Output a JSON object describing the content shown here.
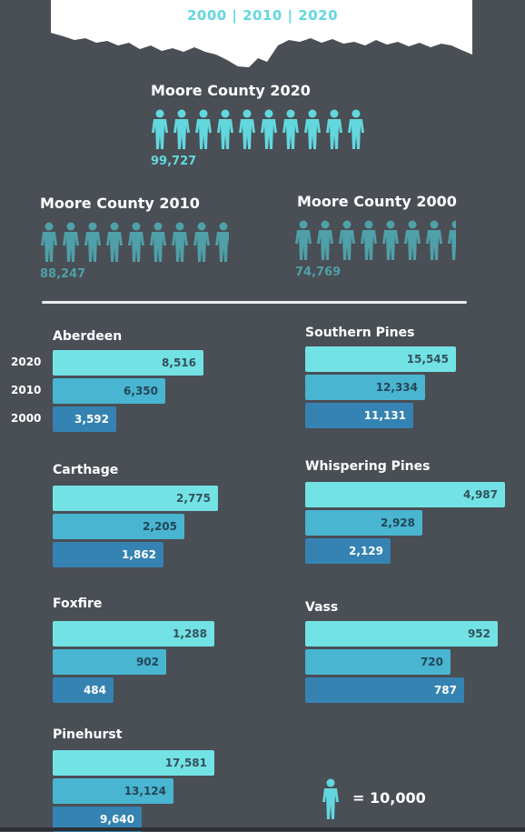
{
  "header": {
    "years": "2000 | 2010 | 2020"
  },
  "county": [
    {
      "title": "Moore County 2020",
      "value": "99,727",
      "figures": 10
    },
    {
      "title": "Moore County 2010",
      "value": "88,247",
      "figures": 8.8
    },
    {
      "title": "Moore County 2000",
      "value": "74,769",
      "figures": 7.5
    }
  ],
  "year_labels": [
    "2020",
    "2010",
    "2000"
  ],
  "legend": {
    "text": "= 10,000",
    "icon": "person-icon"
  },
  "colors": {
    "background": "#4a4e55",
    "accent": "#62d8de",
    "county_2010_2000_figures": "#4fa0a8",
    "bar_2020": "#72e2e5",
    "bar_2010": "#49b5d0",
    "bar_2000": "#3583b2"
  },
  "chart_data": {
    "type": "bar",
    "orientation": "horizontal",
    "series_names": [
      "2020",
      "2010",
      "2000"
    ],
    "towns": [
      {
        "name": "Aberdeen",
        "values": [
          8516,
          6350,
          3592
        ],
        "labels": [
          "8,516",
          "6,350",
          "3,592"
        ]
      },
      {
        "name": "Southern Pines",
        "values": [
          15545,
          12334,
          11131
        ],
        "labels": [
          "15,545",
          "12,334",
          "11,131"
        ]
      },
      {
        "name": "Carthage",
        "values": [
          2775,
          2205,
          1862
        ],
        "labels": [
          "2,775",
          "2,205",
          "1,862"
        ]
      },
      {
        "name": "Whispering Pines",
        "values": [
          4987,
          2928,
          2129
        ],
        "labels": [
          "4,987",
          "2,928",
          "2,129"
        ]
      },
      {
        "name": "Foxfire",
        "values": [
          1288,
          902,
          484
        ],
        "labels": [
          "1,288",
          "902",
          "484"
        ]
      },
      {
        "name": "Vass",
        "values": [
          952,
          720,
          787
        ],
        "labels": [
          "952",
          "720",
          "787"
        ]
      },
      {
        "name": "Pinehurst",
        "values": [
          17581,
          13124,
          9640
        ],
        "labels": [
          "17,581",
          "13,124",
          "9,640"
        ]
      }
    ]
  }
}
